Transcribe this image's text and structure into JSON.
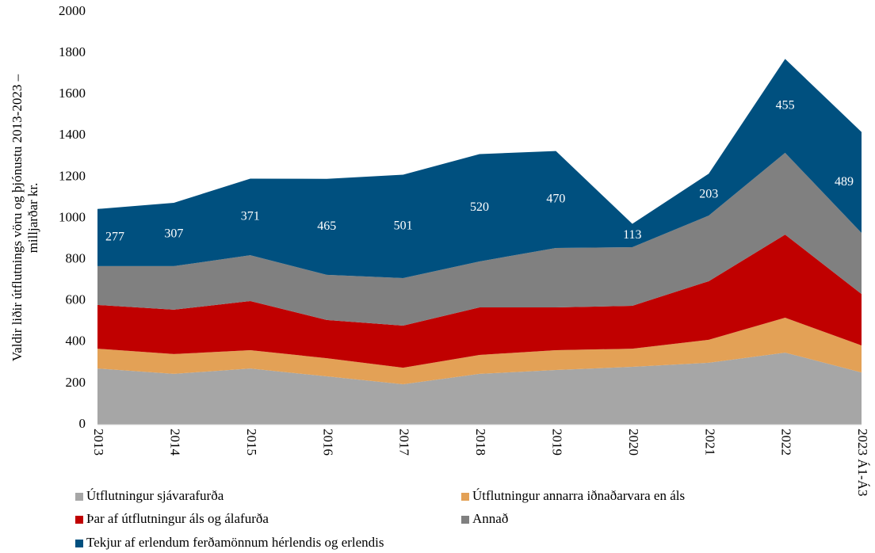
{
  "chart_data": {
    "type": "stacked_area",
    "ylabel": [
      "Valdir liðir útflutnings vöru og þjónustu 2013-2023 –",
      "milljarðar kr."
    ],
    "categories": [
      "2013",
      "2014",
      "2015",
      "2016",
      "2017",
      "2018",
      "2019",
      "2020",
      "2021",
      "2022",
      "2023 Á1-Á3"
    ],
    "series": [
      {
        "name": "Útflutningur sjávarafurða",
        "color": "#a6a6a6",
        "values": [
          272,
          246,
          272,
          234,
          196,
          246,
          265,
          280,
          300,
          349,
          253
        ]
      },
      {
        "name": "Útflutningur annarra iðnaðarvara en áls",
        "color": "#e3a156",
        "values": [
          96,
          96,
          89,
          88,
          80,
          92,
          96,
          88,
          111,
          169,
          131
        ]
      },
      {
        "name": "Þar af útflutningur áls og álafurða",
        "color": "#c00000",
        "values": [
          212,
          215,
          238,
          185,
          204,
          230,
          207,
          208,
          284,
          403,
          249
        ]
      },
      {
        "name": "Annað",
        "color": "#808080",
        "values": [
          188,
          211,
          222,
          219,
          230,
          223,
          288,
          284,
          318,
          396,
          296
        ]
      },
      {
        "name": "Tekjur af erlendum ferðamönnum hérlendis og erlendis",
        "color": "#00507f",
        "values": [
          277,
          307,
          371,
          465,
          501,
          520,
          470,
          113,
          203,
          455,
          489
        ]
      }
    ],
    "data_labels_series": 4,
    "ylim": [
      0,
      2000
    ],
    "yticks": [
      0,
      200,
      400,
      600,
      800,
      1000,
      1200,
      1400,
      1600,
      1800,
      2000
    ],
    "grid": false
  }
}
